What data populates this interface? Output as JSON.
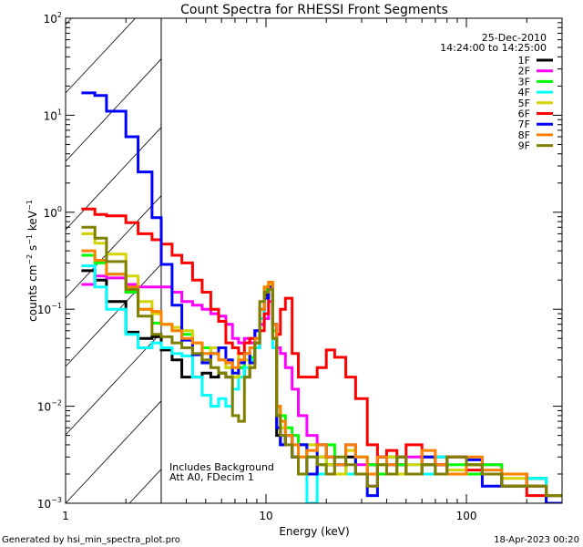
{
  "chart_data": {
    "type": "line",
    "title": "Count Spectra for RHESSI Front Segments",
    "xlabel": "Energy (keV)",
    "ylabel": "counts cm^-2 s^-1 keV^-1",
    "xscale": "log",
    "yscale": "log",
    "xlim": [
      1,
      300
    ],
    "ylim": [
      0.001,
      100
    ],
    "x_ticks": [
      {
        "v": 1,
        "label": "1"
      },
      {
        "v": 10,
        "label": "10"
      },
      {
        "v": 100,
        "label": "100"
      }
    ],
    "y_ticks": [
      {
        "v": 100,
        "base": "10",
        "exp": "2"
      },
      {
        "v": 10,
        "base": "10",
        "exp": "1"
      },
      {
        "v": 1,
        "base": "10",
        "exp": "0"
      },
      {
        "v": 0.1,
        "base": "10",
        "exp": "−1"
      },
      {
        "v": 0.01,
        "base": "10",
        "exp": "−2"
      },
      {
        "v": 0.001,
        "base": "10",
        "exp": "−3"
      }
    ],
    "ylabel_parts": {
      "a": "counts cm",
      "e1": "−2",
      "b": " s",
      "e2": "−1",
      "c": " keV",
      "e3": "−1"
    },
    "hatched_region_keV": [
      1,
      3
    ],
    "date": "25-Dec-2010",
    "time_range": "14:24:00 to 14:25:00",
    "annotations": [
      "Includes Background",
      "Att A0, FDecim 1"
    ],
    "legend_position": "top-right",
    "energy_edges": [
      1.2,
      1.4,
      1.6,
      2.0,
      2.3,
      2.7,
      3.0,
      3.4,
      3.8,
      4.3,
      4.8,
      5.3,
      5.8,
      6.3,
      6.8,
      7.3,
      7.8,
      8.3,
      8.8,
      9.3,
      9.8,
      10.3,
      10.8,
      11.3,
      11.8,
      12.5,
      13.5,
      14.5,
      16,
      18,
      20,
      22,
      25,
      28,
      32,
      36,
      40,
      45,
      50,
      60,
      70,
      80,
      100,
      120,
      150,
      200,
      250,
      300
    ],
    "series": [
      {
        "name": "1F",
        "color": "#000000",
        "values": [
          0.25,
          0.2,
          0.12,
          0.058,
          0.05,
          0.052,
          0.038,
          0.03,
          0.02,
          0.02,
          0.022,
          0.02,
          0.022,
          0.02,
          0.02,
          0.025,
          0.02,
          0.028,
          0.04,
          0.08,
          0.14,
          0.16,
          0.05,
          0.005,
          0.004,
          0.005,
          0.003,
          0.004,
          0.002,
          0.003,
          0.0025,
          0.002,
          0.003,
          0.002,
          0.0025,
          0.002,
          0.003,
          0.0025,
          0.002,
          0.0025,
          0.003,
          0.002,
          0.0025,
          0.002,
          0.0015,
          0.0018,
          0.0012
        ]
      },
      {
        "name": "2F",
        "color": "#ff00ff",
        "values": [
          0.18,
          0.22,
          0.21,
          0.18,
          0.17,
          0.17,
          0.17,
          0.15,
          0.12,
          0.11,
          0.1,
          0.09,
          0.085,
          0.07,
          0.05,
          0.045,
          0.05,
          0.045,
          0.06,
          0.07,
          0.08,
          0.12,
          0.07,
          0.04,
          0.035,
          0.025,
          0.015,
          0.008,
          0.005,
          0.004,
          0.003,
          0.0025,
          0.002,
          0.0025,
          0.0015,
          0.003,
          0.002,
          0.0025,
          0.003,
          0.002,
          0.0025,
          0.003,
          0.002,
          0.0025,
          0.002,
          0.0015,
          0.0012
        ]
      },
      {
        "name": "3F",
        "color": "#00ff00",
        "values": [
          0.36,
          0.3,
          0.23,
          0.15,
          0.1,
          0.072,
          0.07,
          0.06,
          0.055,
          0.045,
          0.04,
          0.035,
          0.03,
          0.025,
          0.02,
          0.025,
          0.03,
          0.032,
          0.05,
          0.1,
          0.16,
          0.18,
          0.06,
          0.01,
          0.008,
          0.006,
          0.005,
          0.004,
          0.003,
          0.0025,
          0.004,
          0.003,
          0.002,
          0.003,
          0.0025,
          0.002,
          0.003,
          0.0025,
          0.002,
          0.003,
          0.002,
          0.0025,
          0.002,
          0.0025,
          0.002,
          0.0018,
          0.0012
        ]
      },
      {
        "name": "4F",
        "color": "#00ffff",
        "values": [
          0.28,
          0.17,
          0.1,
          0.055,
          0.04,
          0.045,
          0.04,
          0.035,
          0.033,
          0.02,
          0.013,
          0.01,
          0.012,
          0.01,
          0.015,
          0.02,
          0.025,
          0.03,
          0.04,
          0.08,
          0.15,
          0.17,
          0.04,
          0.01,
          0.006,
          0.005,
          0.004,
          0.003,
          0.001,
          0.002,
          0.003,
          0.0025,
          0.002,
          0.003,
          0.002,
          0.0025,
          0.002,
          0.003,
          0.0025,
          0.002,
          0.003,
          0.002,
          0.0025,
          0.002,
          0.0015,
          0.0018,
          0.0012
        ]
      },
      {
        "name": "5F",
        "color": "#d4d400",
        "values": [
          0.6,
          0.48,
          0.37,
          0.22,
          0.12,
          0.09,
          0.07,
          0.065,
          0.06,
          0.045,
          0.035,
          0.04,
          0.03,
          0.025,
          0.02,
          0.035,
          0.03,
          0.025,
          0.05,
          0.1,
          0.17,
          0.18,
          0.05,
          0.01,
          0.006,
          0.005,
          0.004,
          0.003,
          0.004,
          0.003,
          0.0025,
          0.002,
          0.0035,
          0.003,
          0.002,
          0.0025,
          0.003,
          0.002,
          0.0025,
          0.003,
          0.002,
          0.0022,
          0.0025,
          0.002,
          0.0018,
          0.0015,
          0.0012
        ]
      },
      {
        "name": "6F",
        "color": "#ff0000",
        "values": [
          1.08,
          0.95,
          0.92,
          0.78,
          0.6,
          0.52,
          0.47,
          0.36,
          0.3,
          0.2,
          0.15,
          0.1,
          0.075,
          0.045,
          0.04,
          0.035,
          0.045,
          0.05,
          0.045,
          0.06,
          0.09,
          0.16,
          0.07,
          0.055,
          0.1,
          0.13,
          0.035,
          0.02,
          0.02,
          0.025,
          0.038,
          0.032,
          0.02,
          0.012,
          0.004,
          0.003,
          0.0035,
          0.003,
          0.004,
          0.003,
          0.0025,
          0.003,
          0.0022,
          0.002,
          0.0015,
          0.0012,
          0.001
        ]
      },
      {
        "name": "7F",
        "color": "#0000ff",
        "values": [
          17,
          16,
          11,
          6,
          2.6,
          0.88,
          0.29,
          0.11,
          0.048,
          0.034,
          0.028,
          0.035,
          0.04,
          0.03,
          0.022,
          0.028,
          0.035,
          0.028,
          0.06,
          0.1,
          0.13,
          0.17,
          0.07,
          0.006,
          0.004,
          0.005,
          0.003,
          0.004,
          0.002,
          0.004,
          0.003,
          0.0025,
          0.004,
          0.002,
          0.0012,
          0.003,
          0.0025,
          0.003,
          0.002,
          0.003,
          0.0025,
          0.002,
          0.0028,
          0.0015,
          0.002,
          0.0015,
          0.001
        ]
      },
      {
        "name": "8F",
        "color": "#ff8000",
        "values": [
          0.4,
          0.32,
          0.23,
          0.17,
          0.1,
          0.095,
          0.07,
          0.06,
          0.05,
          0.045,
          0.035,
          0.035,
          0.03,
          0.028,
          0.025,
          0.03,
          0.035,
          0.04,
          0.05,
          0.1,
          0.17,
          0.19,
          0.07,
          0.01,
          0.007,
          0.005,
          0.004,
          0.003,
          0.0035,
          0.004,
          0.003,
          0.0025,
          0.004,
          0.003,
          0.002,
          0.003,
          0.0025,
          0.003,
          0.002,
          0.0035,
          0.0025,
          0.002,
          0.003,
          0.0022,
          0.002,
          0.0015,
          0.0012
        ]
      },
      {
        "name": "9F",
        "color": "#808000",
        "values": [
          0.7,
          0.54,
          0.31,
          0.16,
          0.085,
          0.055,
          0.052,
          0.045,
          0.04,
          0.035,
          0.03,
          0.025,
          0.022,
          0.02,
          0.008,
          0.007,
          0.02,
          0.025,
          0.045,
          0.12,
          0.15,
          0.16,
          0.05,
          0.008,
          0.005,
          0.004,
          0.003,
          0.002,
          0.003,
          0.0025,
          0.002,
          0.003,
          0.0025,
          0.002,
          0.0015,
          0.0025,
          0.002,
          0.003,
          0.002,
          0.0025,
          0.002,
          0.003,
          0.0025,
          0.002,
          0.0015,
          0.0015,
          0.0012
        ]
      }
    ]
  },
  "footer": {
    "generated_by": "Generated by hsi_min_spectra_plot.pro",
    "timestamp": "18-Apr-2023 00:20"
  }
}
